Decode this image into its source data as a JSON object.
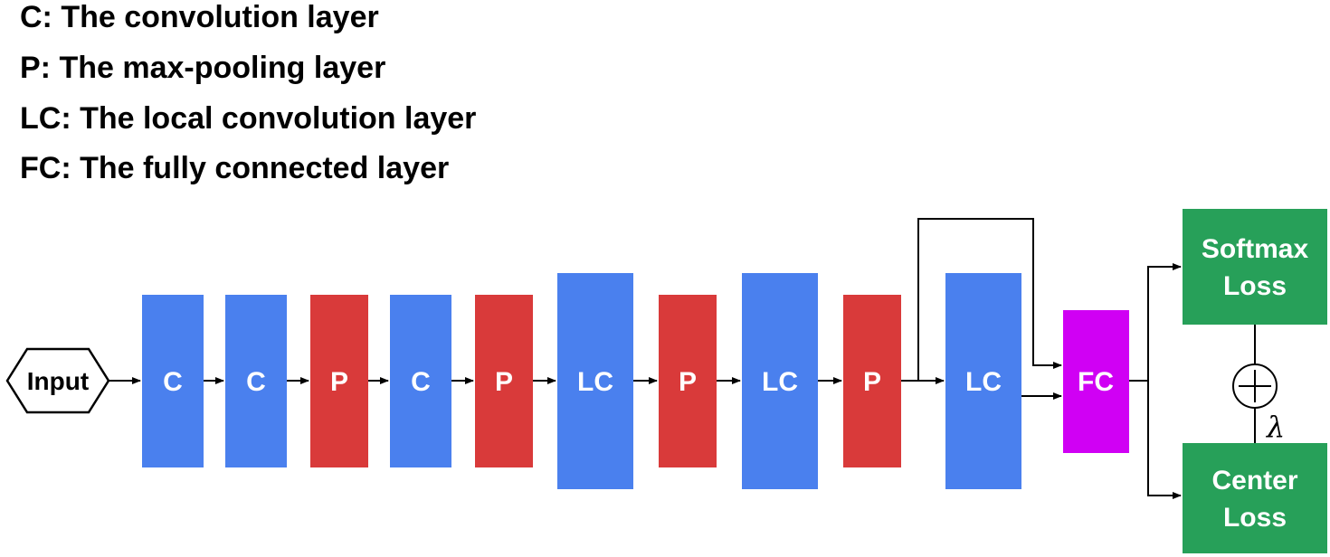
{
  "legend": [
    "C: The convolution layer",
    "P: The max-pooling layer",
    "LC: The local convolution layer",
    "FC: The fully connected layer"
  ],
  "colors": {
    "conv": "#4a80ee",
    "pool": "#d93a3a",
    "fc": "#d000f4",
    "loss": "#27a059",
    "stroke": "#000000"
  },
  "input_label": "Input",
  "layers": [
    {
      "label": "C",
      "kind": "conv"
    },
    {
      "label": "C",
      "kind": "conv"
    },
    {
      "label": "P",
      "kind": "pool"
    },
    {
      "label": "C",
      "kind": "conv"
    },
    {
      "label": "P",
      "kind": "pool"
    },
    {
      "label": "LC",
      "kind": "conv"
    },
    {
      "label": "P",
      "kind": "pool"
    },
    {
      "label": "LC",
      "kind": "conv"
    },
    {
      "label": "P",
      "kind": "pool"
    },
    {
      "label": "LC",
      "kind": "conv"
    }
  ],
  "fc_label": "FC",
  "losses": {
    "softmax": [
      "Softmax",
      "Loss"
    ],
    "center": [
      "Center",
      "Loss"
    ]
  },
  "combine_symbol": "plus-circle-icon",
  "weight_symbol": "λ"
}
